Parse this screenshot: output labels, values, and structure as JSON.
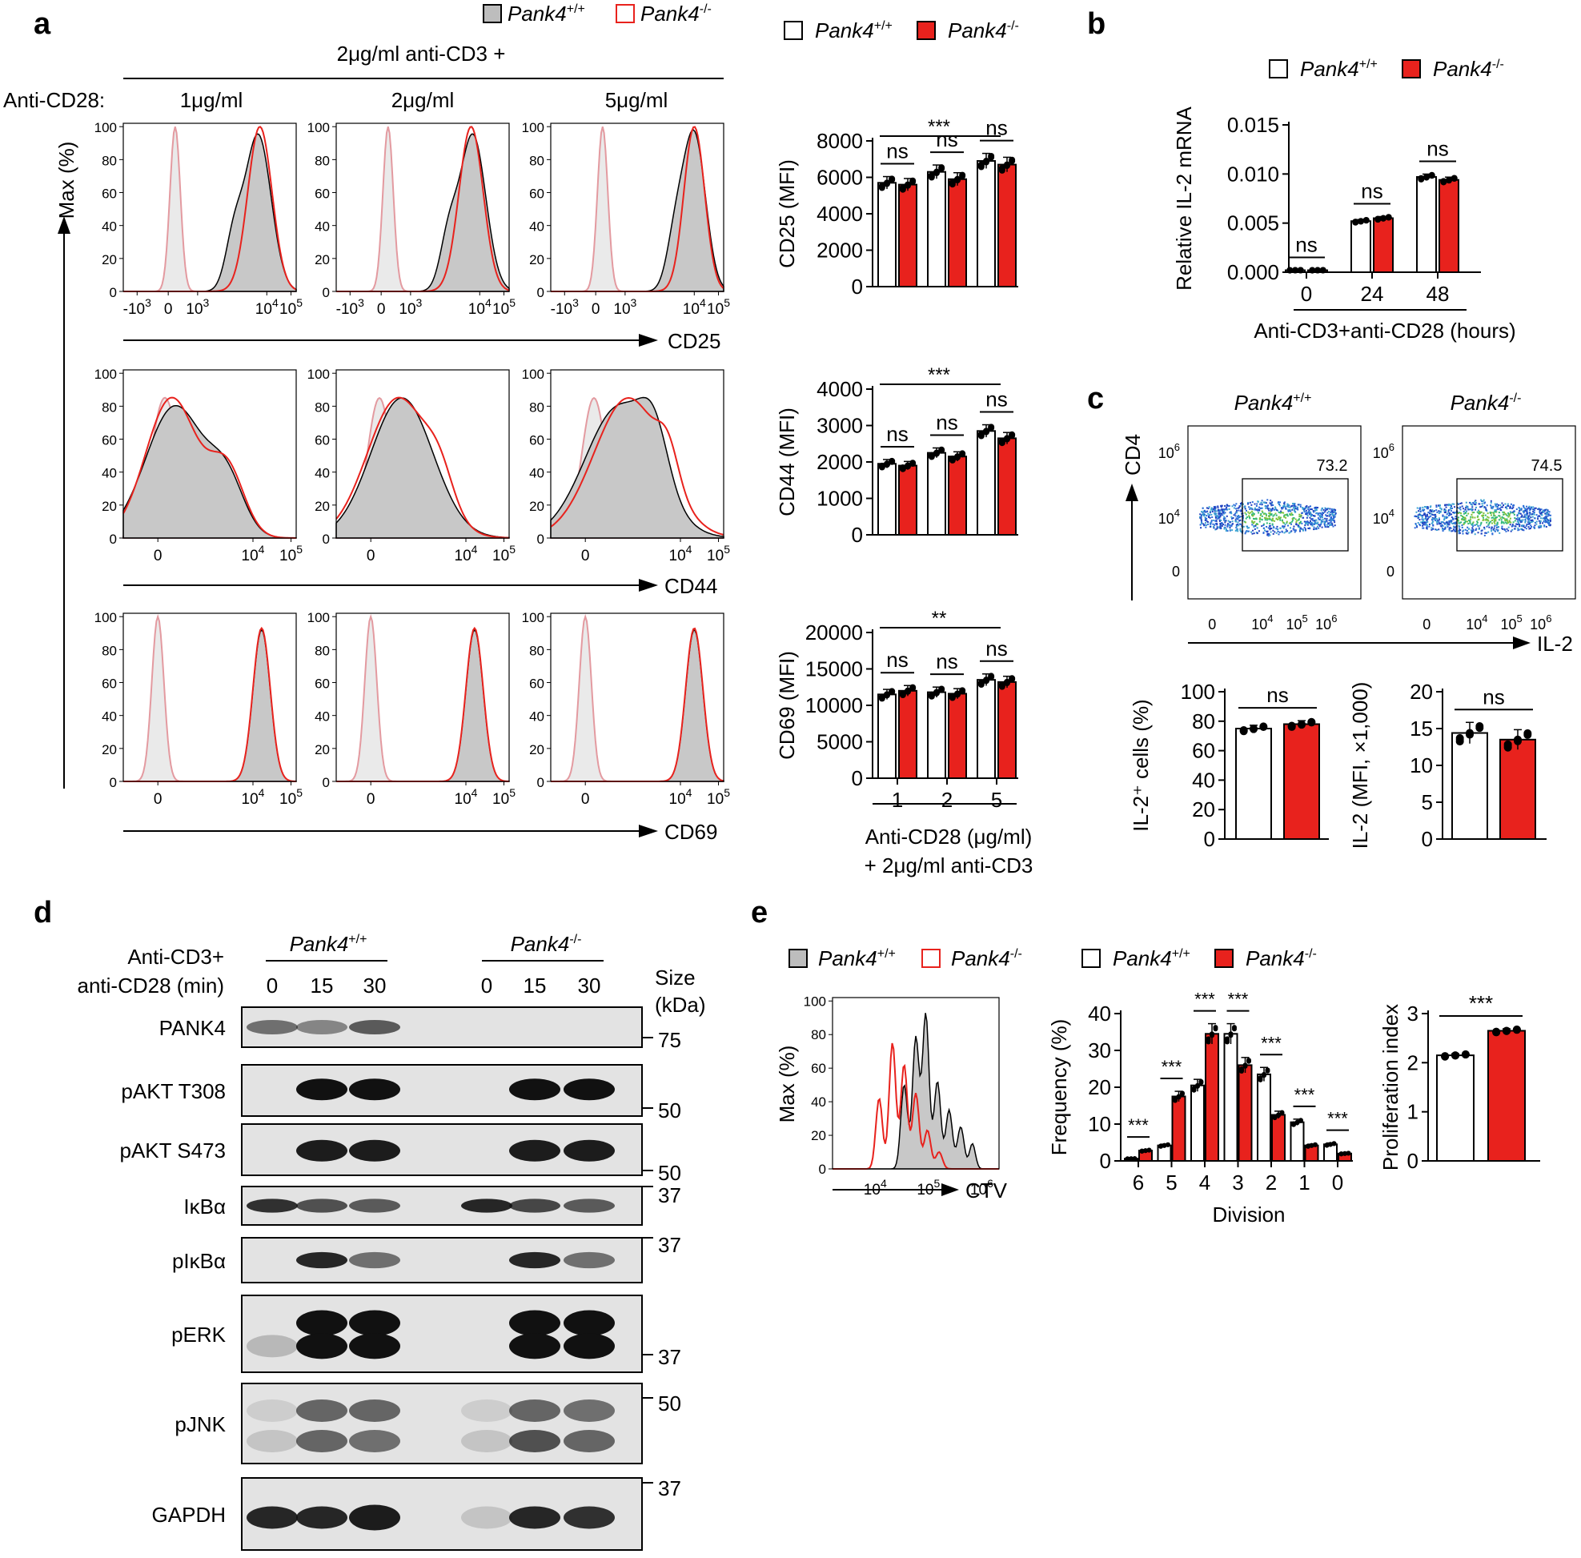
{
  "panels": [
    "a",
    "b",
    "c",
    "d",
    "e"
  ],
  "genotypes": {
    "wt": {
      "italic": "Pank4",
      "sup": "+/+"
    },
    "ko": {
      "italic": "Pank4",
      "sup": "-/-"
    }
  },
  "colors": {
    "wt_fill": "#ffffff",
    "ko_fill": "#e8221d",
    "iso": "#e39aa0",
    "shade": "#c8c8c8"
  },
  "panel_a": {
    "header": "2μg/ml anti-CD3 +",
    "cd28_label": "Anti-CD28:",
    "concentrations": [
      "1μg/ml",
      "2μg/ml",
      "5μg/ml"
    ],
    "markers": [
      "CD25",
      "CD44",
      "CD69"
    ],
    "hist_ylabel": "Max (%)",
    "hist_yticks": [
      "0",
      "20",
      "40",
      "60",
      "80",
      "100"
    ],
    "bars": [
      {
        "ylabel": "CD25 (MFI)",
        "yticks": [
          "0",
          "2000",
          "4000",
          "6000",
          "8000"
        ],
        "ymax": 8000,
        "wt": [
          5700,
          6300,
          6900
        ],
        "ko": [
          5600,
          5900,
          6700
        ],
        "sig": [
          "ns",
          "ns",
          "ns"
        ],
        "bracket": "***"
      },
      {
        "ylabel": "CD44 (MFI)",
        "yticks": [
          "0",
          "1000",
          "2000",
          "3000",
          "4000"
        ],
        "ymax": 4000,
        "wt": [
          1950,
          2250,
          2850
        ],
        "ko": [
          1900,
          2150,
          2650
        ],
        "sig": [
          "ns",
          "ns",
          "ns"
        ],
        "bracket": "***"
      },
      {
        "ylabel": "CD69 (MFI)",
        "yticks": [
          "0",
          "5000",
          "10000",
          "15000",
          "20000"
        ],
        "ymax": 20000,
        "wt": [
          11500,
          11800,
          13500
        ],
        "ko": [
          12000,
          11600,
          13200
        ],
        "sig": [
          "ns",
          "ns",
          "ns"
        ],
        "bracket": "**"
      }
    ],
    "bar_xticks": [
      "1",
      "2",
      "5"
    ],
    "bar_xlabel_1": "Anti-CD28 (μg/ml)",
    "bar_xlabel_2": "+ 2μg/ml anti-CD3"
  },
  "panel_b": {
    "ylabel": "Relative IL-2 mRNA",
    "yticks": [
      "0.000",
      "0.005",
      "0.010",
      "0.015"
    ],
    "xticks": [
      "0",
      "24",
      "48"
    ],
    "xlabel": "Anti-CD3+anti-CD28 (hours)",
    "wt": [
      0.0002,
      0.0052,
      0.0097
    ],
    "ko": [
      0.0002,
      0.0055,
      0.0094
    ],
    "sig": [
      "ns",
      "ns",
      "ns"
    ]
  },
  "panel_c": {
    "gates": [
      "73.2",
      "74.5"
    ],
    "yaxis": "CD4",
    "xaxis": "IL-2",
    "bar1": {
      "ylabel": "IL-2⁺ cells (%)",
      "yticks": [
        "0",
        "20",
        "40",
        "60",
        "80",
        "100"
      ],
      "wt": 75,
      "ko": 78,
      "sig": "ns"
    },
    "bar2": {
      "ylabel": "IL-2 (MFI, ×1,000)",
      "yticks": [
        "0",
        "5",
        "10",
        "15",
        "20"
      ],
      "wt": 14.4,
      "ko": 13.5,
      "sig": "ns"
    }
  },
  "panel_d": {
    "stim_label_1": "Anti-CD3+",
    "stim_label_2": "anti-CD28 (min)",
    "times": [
      "0",
      "15",
      "30",
      "0",
      "15",
      "30"
    ],
    "size_label_1": "Size",
    "size_label_2": "(kDa)",
    "blots": [
      "PANK4",
      "pAKT T308",
      "pAKT S473",
      "IκBα",
      "pIκBα",
      "pERK",
      "pJNK",
      "GAPDH"
    ],
    "markers": [
      "75",
      "50",
      "50",
      "37",
      "37",
      "37",
      "50",
      "37"
    ]
  },
  "panel_e": {
    "hist_ylabel": "Max (%)",
    "hist_yticks": [
      "0",
      "20",
      "40",
      "60",
      "80",
      "100"
    ],
    "hist_xaxis": "CTV",
    "freq_ylabel": "Frequency (%)",
    "freq_yticks": [
      "0",
      "10",
      "20",
      "30",
      "40"
    ],
    "divisions": [
      "6",
      "5",
      "4",
      "3",
      "2",
      "1",
      "0"
    ],
    "div_label": "Division",
    "wt": [
      0.6,
      4.2,
      20.5,
      34.5,
      23.5,
      10.5,
      4.5
    ],
    "ko": [
      2.8,
      17.5,
      34.5,
      26,
      12.5,
      4.2,
      2
    ],
    "sig": [
      "***",
      "***",
      "***",
      "***",
      "***",
      "***",
      "***"
    ],
    "pi_ylabel": "Proliferation index",
    "pi_yticks": [
      "0",
      "1",
      "2",
      "3"
    ],
    "pi_wt": 2.15,
    "pi_ko": 2.65,
    "pi_sig": "***"
  }
}
